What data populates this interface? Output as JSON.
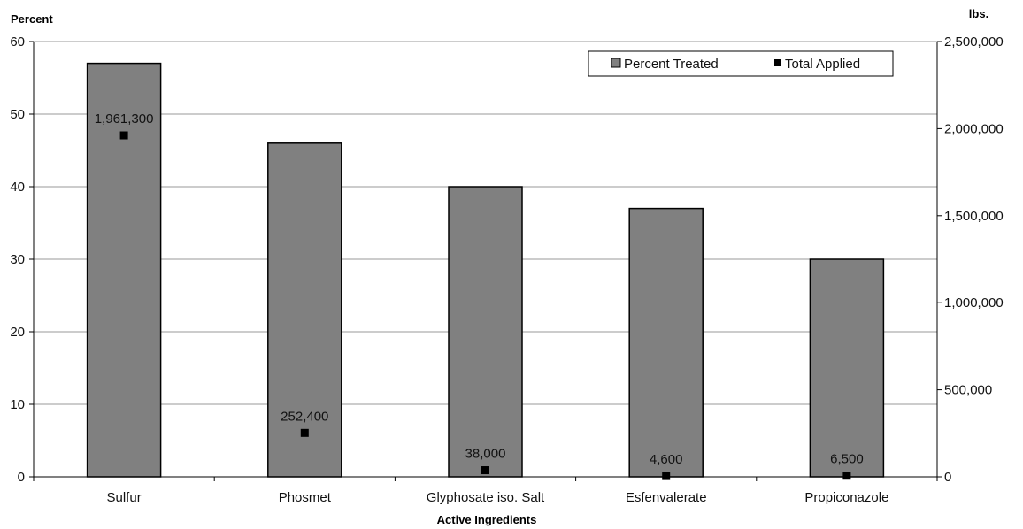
{
  "chart_data": {
    "type": "bar",
    "categories": [
      "Sulfur",
      "Phosmet",
      "Glyphosate iso. Salt",
      "Esfenvalerate",
      "Propiconazole"
    ],
    "series": [
      {
        "name": "Percent Treated",
        "axis": "left",
        "mark": "bar",
        "values": [
          57,
          46,
          40,
          37,
          30
        ]
      },
      {
        "name": "Total Applied",
        "axis": "right",
        "mark": "point",
        "values": [
          1961300,
          252400,
          38000,
          4600,
          6500
        ],
        "labels": [
          "1,961,300",
          "252,400",
          "38,000",
          "4,600",
          "6,500"
        ]
      }
    ],
    "xlabel": "Active Ingredients",
    "ylabel_left": "Percent",
    "ylabel_right": "lbs.",
    "ylim_left": [
      0,
      60
    ],
    "ylim_right": [
      0,
      2500000
    ],
    "yticks_left": [
      "0",
      "10",
      "20",
      "30",
      "40",
      "50",
      "60"
    ],
    "yticks_right": [
      "0",
      "500,000",
      "1,000,000",
      "1,500,000",
      "2,000,000",
      "2,500,000"
    ],
    "grid": true,
    "legend_position": "top-right",
    "colors": {
      "bar_fill": "#808080",
      "bar_stroke": "#000000",
      "marker": "#000000",
      "grid": "#9a9a9a"
    }
  }
}
